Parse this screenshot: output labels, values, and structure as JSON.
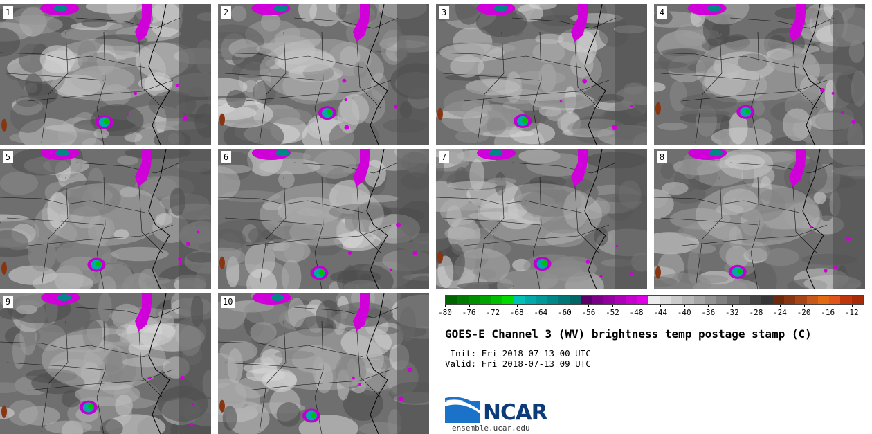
{
  "panels": [
    {
      "label": "1"
    },
    {
      "label": "2"
    },
    {
      "label": "3"
    },
    {
      "label": "4"
    },
    {
      "label": "5"
    },
    {
      "label": "6"
    },
    {
      "label": "7"
    },
    {
      "label": "8"
    },
    {
      "label": "9"
    },
    {
      "label": "10"
    }
  ],
  "colorbar": {
    "min": -80,
    "max": -10,
    "step": 2,
    "tick_labels": [
      "-80",
      "-76",
      "-72",
      "-68",
      "-64",
      "-60",
      "-56",
      "-52",
      "-48",
      "-44",
      "-40",
      "-36",
      "-32",
      "-28",
      "-24",
      "-20",
      "-16",
      "-12"
    ],
    "tick_values": [
      -80,
      -76,
      -72,
      -68,
      -64,
      -60,
      -56,
      -52,
      -48,
      -44,
      -40,
      -36,
      -32,
      -28,
      -24,
      -20,
      -16,
      -12
    ],
    "colors": [
      "#006400",
      "#007a00",
      "#008f00",
      "#00a400",
      "#00bd00",
      "#00d800",
      "#00c0b8",
      "#00aaa8",
      "#009898",
      "#008787",
      "#007676",
      "#006565",
      "#5a0068",
      "#7a0088",
      "#9400a0",
      "#ad00b8",
      "#c600cf",
      "#e000e6",
      "#ececec",
      "#dcdcdc",
      "#cbcbcb",
      "#b9b9b9",
      "#a6a6a6",
      "#939393",
      "#808080",
      "#6c6c6c",
      "#585858",
      "#444444",
      "#363636",
      "#6b2a0c",
      "#883512",
      "#a84516",
      "#c8581a",
      "#e36a12",
      "#e0561a",
      "#c0360c",
      "#a82a06"
    ]
  },
  "title": "GOES-E Channel 3 (WV) brightness temp postage stamp (C)",
  "init": " Init: Fri 2018-07-13 00 UTC",
  "valid": "Valid: Fri 2018-07-13 09 UTC",
  "logo": {
    "text": "NCAR",
    "url": "ensemble.ucar.edu",
    "color": "#0d3b7a",
    "swoosh_color": "#1a73c8"
  }
}
